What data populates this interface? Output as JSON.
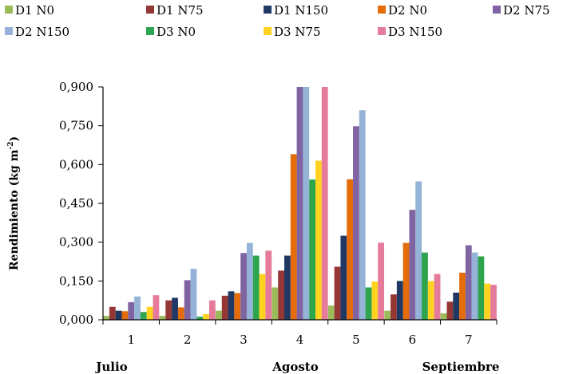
{
  "chart_data": {
    "type": "bar",
    "ylabel": "Rendimiento (kg m",
    "ylabel_sup": "-2",
    "ylabel_close": ")",
    "ylim": [
      0,
      0.9
    ],
    "yticks": [
      "0,000",
      "0,150",
      "0,300",
      "0,450",
      "0,600",
      "0,750",
      "0,900"
    ],
    "ytick_values": [
      0,
      0.15,
      0.3,
      0.45,
      0.6,
      0.75,
      0.9
    ],
    "categories": [
      "1",
      "2",
      "3",
      "4",
      "5",
      "6",
      "7"
    ],
    "month_labels": [
      "Julio",
      "Agosto",
      "Septiembre"
    ],
    "legend_position": "top",
    "grid": false,
    "series": [
      {
        "name": "D1 N0",
        "color": "#9BBB59",
        "values": [
          0.015,
          0.015,
          0.035,
          0.125,
          0.055,
          0.035,
          0.025
        ]
      },
      {
        "name": "D1 N75",
        "color": "#953735",
        "values": [
          0.05,
          0.075,
          0.093,
          0.19,
          0.205,
          0.098,
          0.07
        ]
      },
      {
        "name": "D1 N150",
        "color": "#1F3864",
        "values": [
          0.035,
          0.085,
          0.11,
          0.248,
          0.325,
          0.15,
          0.105
        ]
      },
      {
        "name": "D2 N0",
        "color": "#E46C0A",
        "values": [
          0.033,
          0.048,
          0.103,
          0.64,
          0.543,
          0.297,
          0.182
        ]
      },
      {
        "name": "D2 N75",
        "color": "#8064A2",
        "values": [
          0.068,
          0.153,
          0.258,
          0.9,
          0.748,
          0.425,
          0.288
        ]
      },
      {
        "name": "D2 N150",
        "color": "#95B3D7",
        "values": [
          0.09,
          0.197,
          0.297,
          0.9,
          0.81,
          0.535,
          0.26
        ]
      },
      {
        "name": "D3 N0",
        "color": "#2EA44F",
        "values": [
          0.03,
          0.012,
          0.248,
          0.542,
          0.125,
          0.26,
          0.245
        ]
      },
      {
        "name": "D3 N75",
        "color": "#FFD320",
        "values": [
          0.05,
          0.022,
          0.177,
          0.615,
          0.148,
          0.15,
          0.14
        ]
      },
      {
        "name": "D3 N150",
        "color": "#E57A9B",
        "values": [
          0.095,
          0.075,
          0.267,
          0.9,
          0.298,
          0.177,
          0.135
        ]
      }
    ]
  }
}
